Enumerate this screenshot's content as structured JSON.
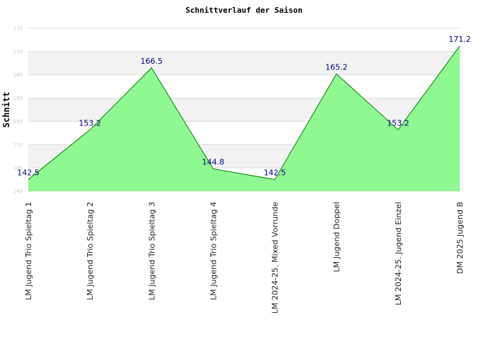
{
  "chart_data": {
    "type": "area",
    "title": "Schnittverlauf der Saison",
    "ylabel": "Schnitt",
    "xlabel": "",
    "categories": [
      "LM Jugend Trio Spieltag 1",
      "LM Jugend Trio Spieltag 2",
      "LM Jugend Trio Spieltag 3",
      "LM Jugend Trio Spieltag 4",
      "LM 2024-25. Mixed Vorrunde",
      "LM Jugend Doppel",
      "LM 2024-25. Jugend Einzel",
      "DM 2025 Jugend B"
    ],
    "values": [
      142.5,
      153.2,
      166.5,
      144.8,
      142.5,
      165.2,
      153.2,
      171.2
    ],
    "data_labels": [
      "142.5",
      "153.2",
      "166.5",
      "144.8",
      "142.5",
      "165.2",
      "153.2",
      "171.2"
    ],
    "ylim": [
      140,
      175
    ],
    "yticks": [
      "140",
      "145",
      "150",
      "155",
      "160",
      "165",
      "170",
      "175"
    ],
    "grid": true,
    "legend": "none",
    "colors": {
      "fill": "#90f890",
      "line": "#008000",
      "band": "#f2f2f2",
      "gridline": "#dddddd",
      "data_label": "#000080"
    }
  }
}
